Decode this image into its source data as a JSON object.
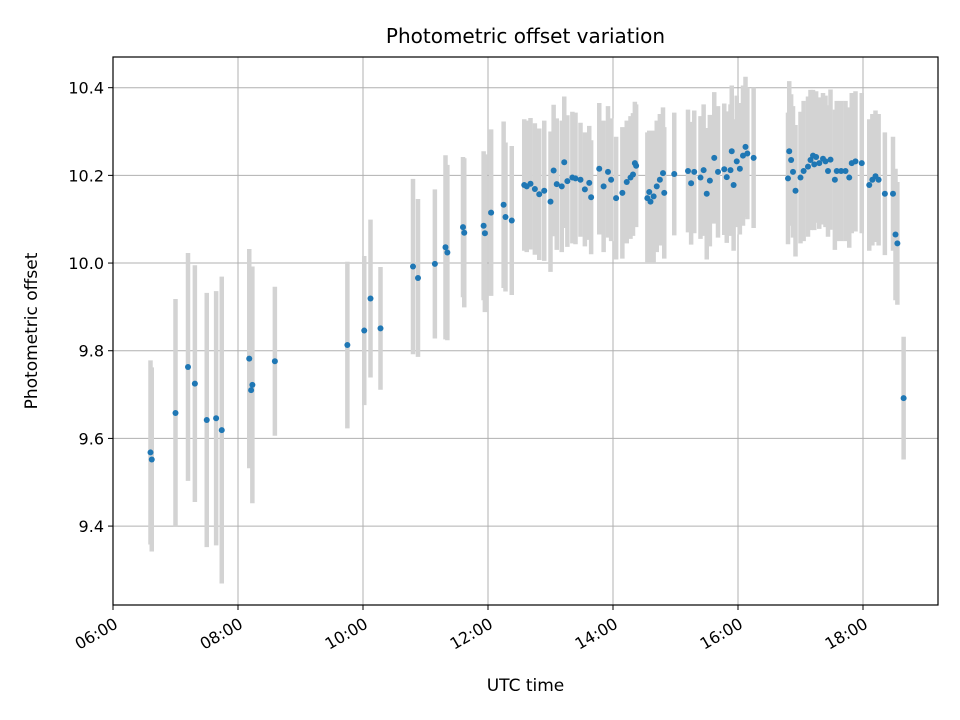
{
  "chart_data": {
    "type": "scatter",
    "title": "Photometric offset variation",
    "xlabel": "UTC time",
    "ylabel": "Photometric offset",
    "x_unit": "hours (UTC)",
    "xlim": [
      6.0,
      19.2
    ],
    "ylim": [
      9.22,
      10.47
    ],
    "x_ticks": [
      6,
      8,
      10,
      12,
      14,
      16,
      18
    ],
    "x_tick_labels": [
      "06:00",
      "08:00",
      "10:00",
      "12:00",
      "14:00",
      "16:00",
      "18:00"
    ],
    "y_ticks": [
      9.4,
      9.6,
      9.8,
      10.0,
      10.2,
      10.4
    ],
    "y_tick_labels": [
      "9.4",
      "9.6",
      "9.8",
      "10.0",
      "10.2",
      "10.4"
    ],
    "grid": true,
    "colors": {
      "point": "#1f77b4",
      "errorbar": "#d3d3d3",
      "grid": "#b0b0b0",
      "axis": "#000000"
    },
    "series": [
      {
        "points": [
          [
            6.6,
            9.568,
            0.21
          ],
          [
            6.62,
            9.552,
            0.21
          ],
          [
            7.0,
            9.658,
            0.26
          ],
          [
            7.2,
            9.763,
            0.26
          ],
          [
            7.31,
            9.725,
            0.27
          ],
          [
            7.5,
            9.642,
            0.29
          ],
          [
            7.65,
            9.646,
            0.29
          ],
          [
            7.74,
            9.619,
            0.35
          ],
          [
            8.18,
            9.782,
            0.25
          ],
          [
            8.21,
            9.71,
            0.17
          ],
          [
            8.23,
            9.722,
            0.27
          ],
          [
            8.59,
            9.776,
            0.17
          ],
          [
            9.75,
            9.813,
            0.19
          ],
          [
            10.02,
            9.846,
            0.17
          ],
          [
            10.12,
            9.919,
            0.18
          ],
          [
            10.28,
            9.851,
            0.14
          ],
          [
            10.8,
            9.992,
            0.2
          ],
          [
            10.88,
            9.966,
            0.18
          ],
          [
            11.15,
            9.998,
            0.17
          ],
          [
            11.32,
            10.036,
            0.21
          ],
          [
            11.35,
            10.024,
            0.2
          ],
          [
            11.6,
            10.082,
            0.16
          ],
          [
            11.62,
            10.069,
            0.17
          ],
          [
            11.93,
            10.085,
            0.17
          ],
          [
            11.95,
            10.068,
            0.18
          ],
          [
            12.05,
            10.115,
            0.19
          ],
          [
            12.25,
            10.133,
            0.19
          ],
          [
            12.28,
            10.105,
            0.17
          ],
          [
            12.38,
            10.097,
            0.17
          ],
          [
            12.58,
            10.178,
            0.15
          ],
          [
            12.62,
            10.175,
            0.15
          ],
          [
            12.68,
            10.181,
            0.15
          ],
          [
            12.75,
            10.169,
            0.15
          ],
          [
            12.82,
            10.157,
            0.15
          ],
          [
            12.9,
            10.165,
            0.16
          ],
          [
            13.0,
            10.14,
            0.16
          ],
          [
            13.05,
            10.211,
            0.15
          ],
          [
            13.1,
            10.18,
            0.15
          ],
          [
            13.18,
            10.175,
            0.15
          ],
          [
            13.22,
            10.23,
            0.15
          ],
          [
            13.27,
            10.187,
            0.15
          ],
          [
            13.35,
            10.195,
            0.15
          ],
          [
            13.4,
            10.193,
            0.15
          ],
          [
            13.48,
            10.19,
            0.13
          ],
          [
            13.55,
            10.168,
            0.13
          ],
          [
            13.62,
            10.183,
            0.13
          ],
          [
            13.65,
            10.15,
            0.13
          ],
          [
            13.78,
            10.215,
            0.15
          ],
          [
            13.85,
            10.175,
            0.15
          ],
          [
            13.92,
            10.208,
            0.15
          ],
          [
            13.97,
            10.19,
            0.14
          ],
          [
            14.05,
            10.148,
            0.14
          ],
          [
            14.15,
            10.16,
            0.15
          ],
          [
            14.22,
            10.185,
            0.14
          ],
          [
            14.28,
            10.195,
            0.14
          ],
          [
            14.32,
            10.202,
            0.14
          ],
          [
            14.35,
            10.228,
            0.14
          ],
          [
            14.37,
            10.222,
            0.14
          ],
          [
            14.55,
            10.148,
            0.15
          ],
          [
            14.58,
            10.162,
            0.14
          ],
          [
            14.6,
            10.14,
            0.14
          ],
          [
            14.65,
            10.152,
            0.15
          ],
          [
            14.7,
            10.175,
            0.15
          ],
          [
            14.75,
            10.19,
            0.15
          ],
          [
            14.8,
            10.205,
            0.15
          ],
          [
            14.82,
            10.16,
            0.15
          ],
          [
            14.98,
            10.203,
            0.14
          ],
          [
            15.2,
            10.21,
            0.14
          ],
          [
            15.25,
            10.182,
            0.14
          ],
          [
            15.3,
            10.208,
            0.14
          ],
          [
            15.4,
            10.195,
            0.14
          ],
          [
            15.45,
            10.212,
            0.15
          ],
          [
            15.5,
            10.158,
            0.15
          ],
          [
            15.55,
            10.188,
            0.15
          ],
          [
            15.62,
            10.24,
            0.15
          ],
          [
            15.68,
            10.208,
            0.15
          ],
          [
            15.78,
            10.214,
            0.15
          ],
          [
            15.82,
            10.196,
            0.15
          ],
          [
            15.88,
            10.212,
            0.15
          ],
          [
            15.9,
            10.255,
            0.15
          ],
          [
            15.93,
            10.178,
            0.15
          ],
          [
            15.98,
            10.232,
            0.15
          ],
          [
            16.03,
            10.215,
            0.15
          ],
          [
            16.08,
            10.245,
            0.16
          ],
          [
            16.12,
            10.265,
            0.16
          ],
          [
            16.15,
            10.25,
            0.15
          ],
          [
            16.25,
            10.24,
            0.16
          ],
          [
            16.8,
            10.193,
            0.15
          ],
          [
            16.82,
            10.255,
            0.16
          ],
          [
            16.85,
            10.235,
            0.15
          ],
          [
            16.88,
            10.208,
            0.15
          ],
          [
            16.92,
            10.165,
            0.15
          ],
          [
            17.0,
            10.195,
            0.15
          ],
          [
            17.05,
            10.21,
            0.16
          ],
          [
            17.12,
            10.22,
            0.16
          ],
          [
            17.16,
            10.235,
            0.16
          ],
          [
            17.2,
            10.245,
            0.15
          ],
          [
            17.22,
            10.225,
            0.15
          ],
          [
            17.25,
            10.242,
            0.15
          ],
          [
            17.3,
            10.228,
            0.15
          ],
          [
            17.36,
            10.238,
            0.15
          ],
          [
            17.4,
            10.232,
            0.15
          ],
          [
            17.44,
            10.21,
            0.15
          ],
          [
            17.48,
            10.236,
            0.16
          ],
          [
            17.55,
            10.19,
            0.16
          ],
          [
            17.58,
            10.21,
            0.16
          ],
          [
            17.65,
            10.21,
            0.16
          ],
          [
            17.72,
            10.21,
            0.16
          ],
          [
            17.78,
            10.195,
            0.16
          ],
          [
            17.82,
            10.228,
            0.16
          ],
          [
            17.88,
            10.232,
            0.16
          ],
          [
            17.98,
            10.228,
            0.16
          ],
          [
            18.1,
            10.178,
            0.15
          ],
          [
            18.15,
            10.19,
            0.15
          ],
          [
            18.2,
            10.198,
            0.15
          ],
          [
            18.25,
            10.19,
            0.15
          ],
          [
            18.35,
            10.158,
            0.14
          ],
          [
            18.48,
            10.158,
            0.13
          ],
          [
            18.52,
            10.065,
            0.15
          ],
          [
            18.55,
            10.045,
            0.14
          ],
          [
            18.65,
            9.692,
            0.14
          ]
        ]
      }
    ]
  }
}
